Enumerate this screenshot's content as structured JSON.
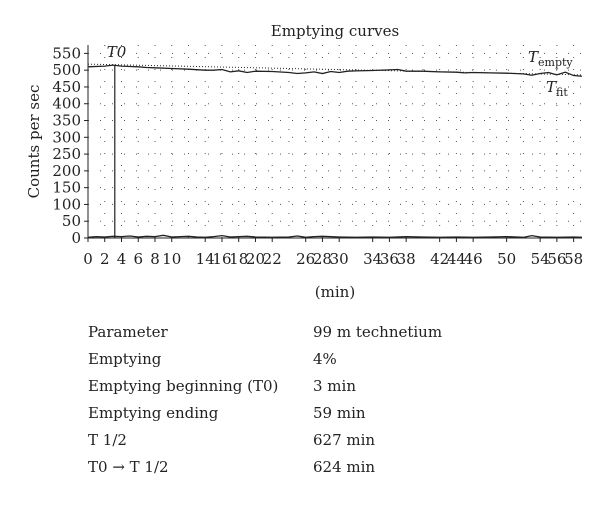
{
  "chart_data": {
    "type": "line",
    "title": "Emptying curves",
    "xlabel": "(min)",
    "ylabel": "Counts per sec",
    "xlim": [
      0,
      59
    ],
    "ylim": [
      0,
      575
    ],
    "x_ticks": [
      0,
      2,
      4,
      6,
      8,
      10,
      14,
      16,
      18,
      20,
      22,
      26,
      28,
      30,
      34,
      36,
      38,
      42,
      44,
      46,
      50,
      54,
      56,
      58
    ],
    "y_ticks": [
      0,
      50,
      100,
      150,
      200,
      250,
      300,
      350,
      400,
      450,
      500,
      550
    ],
    "grid": "dotted",
    "series": [
      {
        "name": "T_empty",
        "style": "solid",
        "color": "#222222",
        "x": [
          0,
          2,
          3,
          4,
          6,
          7,
          8,
          10,
          12,
          14,
          15,
          16,
          17,
          18,
          19,
          20,
          22,
          24,
          25,
          26,
          27,
          28,
          29,
          30,
          31,
          32,
          34,
          36,
          37,
          38,
          40,
          42,
          44,
          45,
          46,
          48,
          50,
          52,
          53,
          54,
          55,
          56,
          57,
          58,
          59
        ],
        "y": [
          510,
          512,
          515,
          512,
          510,
          508,
          507,
          505,
          503,
          500,
          500,
          502,
          495,
          498,
          493,
          497,
          496,
          493,
          490,
          492,
          495,
          490,
          496,
          493,
          497,
          498,
          499,
          501,
          502,
          497,
          497,
          495,
          494,
          492,
          493,
          492,
          491,
          489,
          485,
          490,
          493,
          486,
          494,
          484,
          482
        ]
      },
      {
        "name": "T_fit",
        "style": "dotted",
        "color": "#222222",
        "x": [
          0,
          59
        ],
        "y": [
          518,
          486
        ]
      },
      {
        "name": "background",
        "style": "solid",
        "color": "#222222",
        "x": [
          0,
          1,
          2,
          3,
          4,
          5,
          6,
          7,
          8,
          9,
          10,
          11,
          12,
          13,
          14,
          15,
          16,
          17,
          18,
          19,
          20,
          22,
          24,
          25,
          26,
          27,
          28,
          30,
          32,
          34,
          36,
          38,
          40,
          42,
          44,
          46,
          48,
          50,
          52,
          53,
          54,
          56,
          58,
          59
        ],
        "y": [
          2,
          4,
          3,
          5,
          4,
          6,
          3,
          5,
          4,
          8,
          3,
          4,
          5,
          3,
          2,
          4,
          7,
          3,
          4,
          5,
          3,
          2,
          3,
          6,
          2,
          4,
          5,
          3,
          2,
          3,
          2,
          4,
          3,
          2,
          3,
          2,
          3,
          4,
          2,
          7,
          3,
          2,
          3,
          2
        ]
      }
    ],
    "labels": {
      "t0": "T0",
      "t0_x": 3.2,
      "t_empty_main": "T",
      "t_empty_sub": "empty",
      "t_fit_main": "T",
      "t_fit_sub": "fit"
    }
  },
  "params": [
    {
      "label": "Parameter",
      "value": "99 m technetium"
    },
    {
      "label": "Emptying",
      "value": "4%"
    },
    {
      "label": "Emptying beginning (T0)",
      "value": "3 min"
    },
    {
      "label": "Emptying ending",
      "value": "59 min"
    },
    {
      "label": "T 1/2",
      "value": "627 min"
    },
    {
      "label": "T0 → T 1/2",
      "value": "624 min"
    }
  ]
}
